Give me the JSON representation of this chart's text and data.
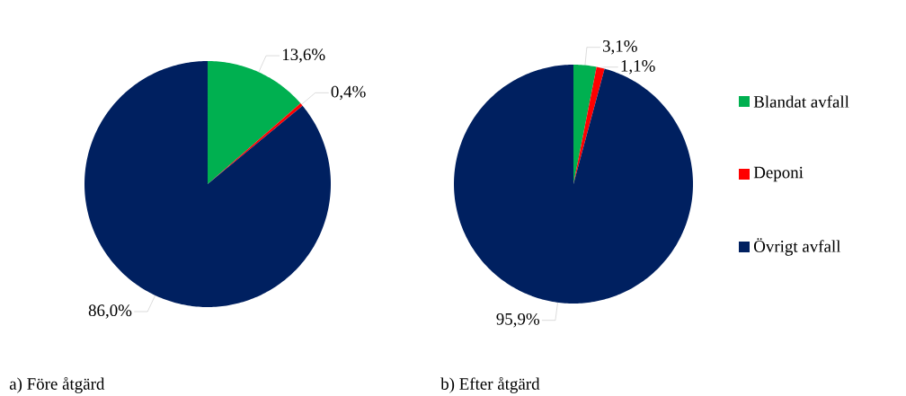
{
  "chart_data": [
    {
      "type": "pie",
      "title": "a) Före åtgärd",
      "categories": [
        null,
        null,
        null
      ],
      "values": [
        13.6,
        0.4,
        86.0
      ],
      "colors": [
        "#00b050",
        "#ff0000",
        "#002060"
      ],
      "value_labels": [
        "13,6%",
        "0,4%",
        "86,0%"
      ]
    },
    {
      "type": "pie",
      "title": "b) Efter åtgärd",
      "categories": [
        "Blandat avfall",
        "Deponi",
        "Övrigt avfall"
      ],
      "values": [
        3.1,
        1.1,
        95.9
      ],
      "colors": [
        "#00b050",
        "#ff0000",
        "#002060"
      ],
      "value_labels": [
        "3,1%",
        "1,1%",
        "95,9%"
      ],
      "legend": "right"
    }
  ]
}
